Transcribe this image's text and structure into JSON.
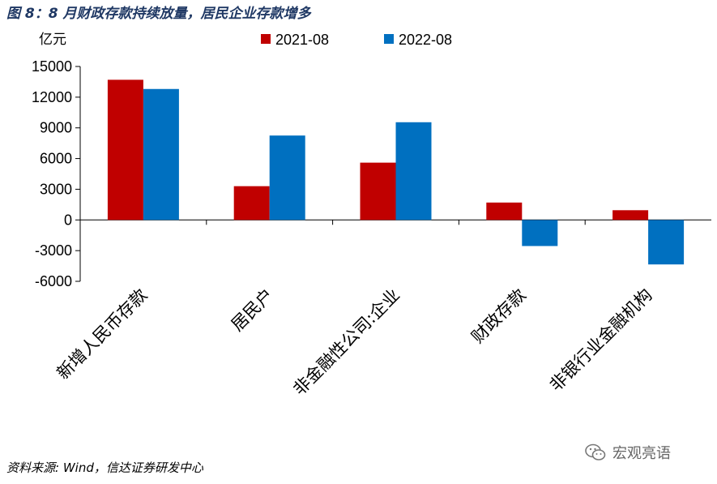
{
  "title": "图 8：8 月财政存款持续放量，居民企业存款增多",
  "source": "资料来源: Wind，信达证券研发中心",
  "watermark": "宏观亮语",
  "chart_data": {
    "type": "bar",
    "unit_label": "亿元",
    "categories": [
      "新增人民币存款",
      "居民户",
      "非金融性公司:企业",
      "财政存款",
      "非银行业金融机构"
    ],
    "series": [
      {
        "name": "2021-08",
        "color": "#c00000",
        "values": [
          13700,
          3300,
          5600,
          1700,
          950
        ]
      },
      {
        "name": "2022-08",
        "color": "#0070c0",
        "values": [
          12800,
          8250,
          9550,
          -2550,
          -4350
        ]
      }
    ],
    "ylim": [
      -6000,
      15000
    ],
    "yticks": [
      15000,
      12000,
      9000,
      6000,
      3000,
      0,
      -3000,
      -6000
    ],
    "legend_position": "top"
  }
}
